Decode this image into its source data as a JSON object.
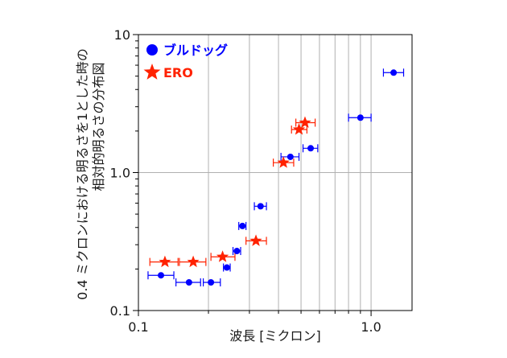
{
  "chart_data": {
    "type": "scatter",
    "xlabel": "波長 [ミクロン]",
    "ylabel_lines": [
      "0.4 ミクロンにおける明るさを1とした時の",
      "相対的明るさの分布図"
    ],
    "xscale": "log",
    "yscale": "log",
    "xlim": [
      0.1,
      1.5
    ],
    "ylim": [
      0.1,
      10
    ],
    "x_ticks": [
      0.1,
      1.0
    ],
    "x_tick_labels": [
      "0.1",
      "1.0"
    ],
    "y_ticks": [
      0.1,
      1.0,
      10
    ],
    "y_tick_labels": [
      "0.1",
      "1.0",
      "10"
    ],
    "grid": "vertical minor lines in x-range 0.2–0.9 plus horizontal line at 1.0 and vertical line at 1.0",
    "legend_position": "top-left",
    "series": [
      {
        "name": "ブルドッグ",
        "marker": "circle",
        "color": "#0000ff",
        "points": [
          {
            "x": 0.125,
            "y": 0.18,
            "xlo": 0.11,
            "xhi": 0.142
          },
          {
            "x": 0.165,
            "y": 0.16,
            "xlo": 0.145,
            "xhi": 0.185
          },
          {
            "x": 0.205,
            "y": 0.16,
            "xlo": 0.19,
            "xhi": 0.225
          },
          {
            "x": 0.24,
            "y": 0.205,
            "xlo": 0.232,
            "xhi": 0.248
          },
          {
            "x": 0.265,
            "y": 0.27,
            "xlo": 0.255,
            "xhi": 0.275
          },
          {
            "x": 0.28,
            "y": 0.41,
            "xlo": 0.27,
            "xhi": 0.29
          },
          {
            "x": 0.335,
            "y": 0.57,
            "xlo": 0.315,
            "xhi": 0.355
          },
          {
            "x": 0.45,
            "y": 1.3,
            "xlo": 0.41,
            "xhi": 0.49
          },
          {
            "x": 0.55,
            "y": 1.5,
            "xlo": 0.51,
            "xhi": 0.59
          },
          {
            "x": 0.9,
            "y": 2.5,
            "xlo": 0.8,
            "xhi": 1.0
          },
          {
            "x": 1.25,
            "y": 5.3,
            "xlo": 1.13,
            "xhi": 1.38
          }
        ]
      },
      {
        "name": "ERO",
        "marker": "star",
        "color": "#ff2200",
        "points": [
          {
            "x": 0.13,
            "y": 0.225,
            "xlo": 0.112,
            "xhi": 0.148
          },
          {
            "x": 0.172,
            "y": 0.225,
            "xlo": 0.15,
            "xhi": 0.195
          },
          {
            "x": 0.23,
            "y": 0.245,
            "xlo": 0.205,
            "xhi": 0.26
          },
          {
            "x": 0.32,
            "y": 0.32,
            "xlo": 0.29,
            "xhi": 0.355
          },
          {
            "x": 0.42,
            "y": 1.18,
            "xlo": 0.38,
            "xhi": 0.465
          },
          {
            "x": 0.49,
            "y": 2.05,
            "xlo": 0.455,
            "xhi": 0.53
          },
          {
            "x": 0.52,
            "y": 2.3,
            "xlo": 0.475,
            "xhi": 0.575
          }
        ]
      }
    ]
  }
}
